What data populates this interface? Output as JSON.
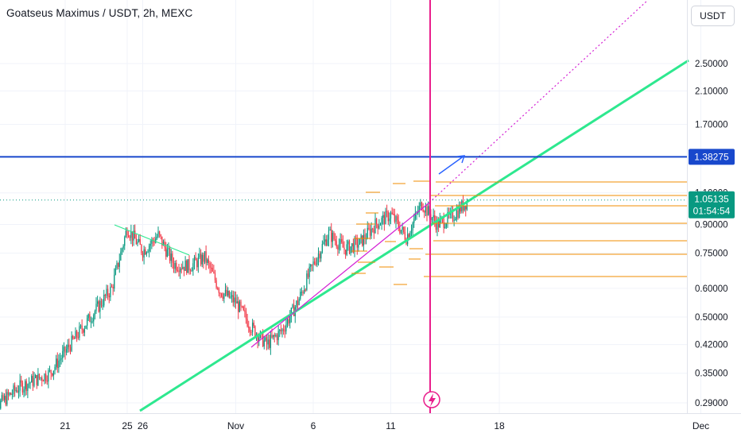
{
  "header": {
    "symbol": "Goatseus Maximus / USDT",
    "interval": "2h",
    "exchange": "MEXC",
    "currency_button": "USDT"
  },
  "colors": {
    "up": "#089981",
    "down": "#f23645",
    "support": "#2ee88f",
    "pink": "#e91e8c",
    "blue": "#1848cc",
    "orange": "#f08c00",
    "magenta": "#d41fd4",
    "last_price_bg": "#089981"
  },
  "chart_data": {
    "type": "candlestick",
    "scale": "log",
    "y_axis_ticks": [
      "2.50000",
      "2.10000",
      "1.70000",
      "1.10000",
      "0.90000",
      "0.75000",
      "0.60000",
      "0.50000",
      "0.42000",
      "0.35000",
      "0.29000"
    ],
    "x_axis_ticks": [
      "21",
      "26",
      "Nov",
      "6",
      "11",
      "18",
      "25",
      "Dec"
    ],
    "price_labels": {
      "horizontal_level": "1.38275",
      "last_price": "1.05135",
      "countdown": "01:54:54"
    },
    "key_levels": [
      1.38275,
      1.2,
      1.1,
      1.0,
      0.9,
      0.8,
      0.75,
      0.65
    ],
    "close_path": [
      {
        "t": "Oct 16",
        "price": 0.27
      },
      {
        "t": "Oct 18",
        "price": 0.32
      },
      {
        "t": "Oct 20",
        "price": 0.35
      },
      {
        "t": "Oct 22",
        "price": 0.46
      },
      {
        "t": "Oct 24",
        "price": 0.6
      },
      {
        "t": "Oct 25",
        "price": 0.88
      },
      {
        "t": "Oct 26",
        "price": 0.76
      },
      {
        "t": "Oct 27",
        "price": 0.84
      },
      {
        "t": "Oct 28",
        "price": 0.7
      },
      {
        "t": "Oct 29",
        "price": 0.69
      },
      {
        "t": "Oct 30",
        "price": 0.73
      },
      {
        "t": "Oct 31",
        "price": 0.59
      },
      {
        "t": "Nov 1",
        "price": 0.55
      },
      {
        "t": "Nov 2",
        "price": 0.47
      },
      {
        "t": "Nov 3",
        "price": 0.42
      },
      {
        "t": "Nov 4",
        "price": 0.46
      },
      {
        "t": "Nov 5",
        "price": 0.55
      },
      {
        "t": "Nov 6",
        "price": 0.7
      },
      {
        "t": "Nov 7",
        "price": 0.85
      },
      {
        "t": "Nov 8",
        "price": 0.77
      },
      {
        "t": "Nov 9",
        "price": 0.8
      },
      {
        "t": "Nov 10",
        "price": 0.9
      },
      {
        "t": "Nov 11",
        "price": 0.96
      },
      {
        "t": "Nov 12",
        "price": 0.83
      },
      {
        "t": "Nov 13",
        "price": 1.03
      },
      {
        "t": "Nov 14",
        "price": 0.9
      },
      {
        "t": "Nov 15",
        "price": 0.95
      },
      {
        "t": "Nov 16",
        "price": 1.05135
      }
    ]
  }
}
